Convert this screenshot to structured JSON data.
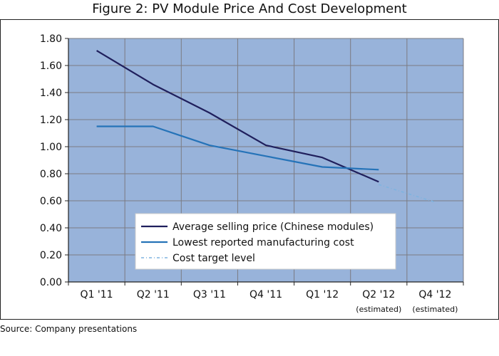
{
  "title": "Figure 2: PV Module Price And Cost Development",
  "source": "Source: Company presentations",
  "colors": {
    "plot_background": "#98B3DA",
    "grid": "#7b7b82",
    "average_selling_price": "#1f1f5c",
    "manufacturing_cost": "#2573b8",
    "cost_target": "#7fb3e0"
  },
  "chart_data": {
    "type": "line",
    "categories": [
      {
        "label": "Q1 '11",
        "sub": ""
      },
      {
        "label": "Q2 '11",
        "sub": ""
      },
      {
        "label": "Q3 '11",
        "sub": ""
      },
      {
        "label": "Q4 '11",
        "sub": ""
      },
      {
        "label": "Q1 '12",
        "sub": ""
      },
      {
        "label": "Q2 '12",
        "sub": "(estimated)"
      },
      {
        "label": "Q4 '12",
        "sub": "(estimated)"
      }
    ],
    "ylim": [
      0,
      1.8
    ],
    "yticks": [
      "0.00",
      "0.20",
      "0.40",
      "0.60",
      "0.80",
      "1.00",
      "1.20",
      "1.40",
      "1.60",
      "1.80"
    ],
    "grid": true,
    "legend_position": "bottom-center",
    "series": [
      {
        "name": "Average selling price (Chinese modules)",
        "style": "solid",
        "points": [
          {
            "x": 0,
            "y": 1.71
          },
          {
            "x": 1,
            "y": 1.46
          },
          {
            "x": 2,
            "y": 1.25
          },
          {
            "x": 3,
            "y": 1.01
          },
          {
            "x": 4,
            "y": 0.92
          },
          {
            "x": 5,
            "y": 0.74
          }
        ]
      },
      {
        "name": "Lowest reported manufacturing cost",
        "style": "solid",
        "points": [
          {
            "x": 0,
            "y": 1.15
          },
          {
            "x": 1,
            "y": 1.15
          },
          {
            "x": 2,
            "y": 1.01
          },
          {
            "x": 3,
            "y": 0.93
          },
          {
            "x": 4,
            "y": 0.85
          },
          {
            "x": 5,
            "y": 0.83
          }
        ]
      },
      {
        "name": "Cost target level",
        "style": "dashed",
        "points": [
          {
            "x": 5,
            "y": 0.72
          },
          {
            "x": 6,
            "y": 0.59
          }
        ]
      }
    ]
  }
}
